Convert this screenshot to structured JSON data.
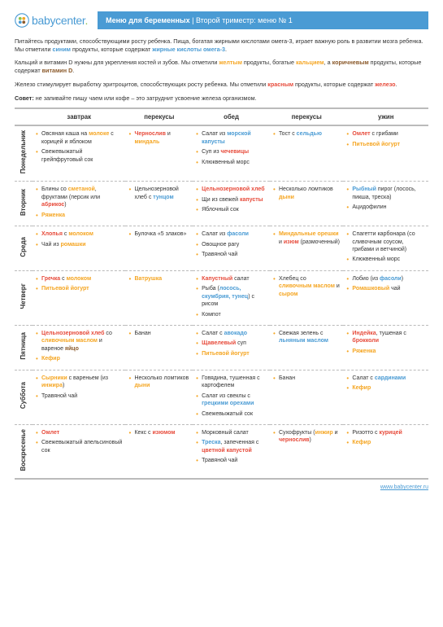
{
  "logo": {
    "name": "babycenter"
  },
  "title": {
    "main": "Меню для беременных",
    "sub": "Второй триместр: меню № 1"
  },
  "intro": [
    "Питайтесь продуктами, способствующими росту ребенка. Пища, богатая жирными кислотами омега-3, играет важную роль в развитии мозга ребенка. Мы отметили <span class='blue'>синим</span> продукты, которые содержат <span class='blue'>жирные кислоты омега-3</span>.",
    "Кальций и витамин D нужны для укрепления костей и зубов. Мы отметили <span class='yellow'>желтым</span> продукты, богатые <span class='yellow'>кальцием</span>, а <span class='brown'>коричневым</span> продукты, которые содержат <span class='brown'>витамин D</span>.",
    "Железо стимулирует выработку эритроцитов, способствующих росту ребенка. Мы отметили <span class='red'>красным</span> продукты, которые содержат <span class='red'>железо</span>."
  ],
  "tip": "<b>Совет:</b> не запивайте пищу чаем или кофе – это затруднит усвоение железа организмом.",
  "columns": [
    "завтрак",
    "перекусы",
    "обед",
    "перекусы",
    "ужин"
  ],
  "days": [
    {
      "name": "Понедельник",
      "cells": [
        [
          "Овсяная каша на <span class='yellow'>молоке</span> с корицей и яблоком",
          "Свежевыжатый грейпфрутовый сок"
        ],
        [
          "<span class='red'>Чернослив</span> и <span class='yellow'>миндаль</span>"
        ],
        [
          "Салат из <span class='blue'>морской капусты</span>",
          "Суп из <span class='red'>чечевицы</span>",
          "Клюквенный морс"
        ],
        [
          "Тост с <span class='blue'>сельдью</span>"
        ],
        [
          "<span class='red'>Омлет</span> с грибами",
          "<span class='yellow'>Питьевой йогурт</span>"
        ]
      ]
    },
    {
      "name": "Вторник",
      "cells": [
        [
          "Блины со <span class='yellow'>сметаной</span>, фруктами (персик или <span class='red'>абрикос</span>)",
          "<span class='yellow'>Ряженка</span>"
        ],
        [
          "Цельнозерновой хлеб с <span class='blue'>тунцом</span>"
        ],
        [
          "<span class='red'>Цельнозерновой хлеб</span>",
          "Щи из свежей <span class='red'>капусты</span>",
          "Яблочный сок"
        ],
        [
          "Несколько ломтиков <span class='yellow'>дыни</span>"
        ],
        [
          "<span class='blue'>Рыбный</span> пирог (лосось, пикша, треска)",
          "Ацидофилин"
        ]
      ]
    },
    {
      "name": "Среда",
      "cells": [
        [
          "<span class='red'>Хлопья</span> с <span class='yellow'>молоком</span>",
          "Чай из <span class='yellow'>ромашки</span>"
        ],
        [
          "Булочка «5 злаков»"
        ],
        [
          "Салат из <span class='blue'>фасоли</span>",
          "Овощное рагу",
          "Травяной чай"
        ],
        [
          "<span class='yellow'>Миндальные орешки</span> и <span class='red'>изюм</span> (размоченный)"
        ],
        [
          "Спагетти карбонара (со сливочным соусом, грибами и ветчиной)",
          "Клюквенный морс"
        ]
      ]
    },
    {
      "name": "Четверг",
      "cells": [
        [
          "<span class='red'>Гречка</span> с <span class='yellow'>молоком</span>",
          "<span class='yellow'>Питьевой йогурт</span>"
        ],
        [
          "<span class='yellow'>Ватрушка</span>"
        ],
        [
          "<span class='red'>Капустный</span> салат",
          "Рыба (<span class='blue'>лосось, скумбрия, тунец</span>) с рисом",
          "Компот"
        ],
        [
          "Хлебец со <span class='yellow'>сливочным маслом</span> и <span class='yellow'>сыром</span>"
        ],
        [
          "Лобио (из <span class='blue'>фасоли</span>)",
          "<span class='yellow'>Ромашковый</span> чай"
        ]
      ]
    },
    {
      "name": "Пятница",
      "cells": [
        [
          "<span class='red'>Цельнозерновой хлеб</span> со <span class='yellow'>сливочным маслом</span> и вареное <span class='brown'>яйцо</span>",
          "<span class='yellow'>Кефир</span>"
        ],
        [
          "Банан"
        ],
        [
          "Салат с <span class='blue'>авокадо</span>",
          "<span class='red'>Щавелевый</span> суп",
          "<span class='yellow'>Питьевой йогурт</span>"
        ],
        [
          "Свежая зелень с <span class='blue'>льняным маслом</span>"
        ],
        [
          "<span class='red'>Индейка</span>, тушеная с <span class='red'>брокколи</span>",
          "<span class='yellow'>Ряженка</span>"
        ]
      ]
    },
    {
      "name": "Суббота",
      "cells": [
        [
          "<span class='yellow'>Сырники</span> с вареньем (из <span class='yellow'>инжира</span>)",
          "Травяной чай"
        ],
        [
          "Несколько ломтиков <span class='yellow'>дыни</span>"
        ],
        [
          "Говядина, тушенная с картофелем",
          "Салат из свеклы с <span class='blue'>грецкими орехами</span>",
          "Свежевыжатый сок"
        ],
        [
          "Банан"
        ],
        [
          "Салат с <span class='blue'>сардинами</span>",
          "<span class='yellow'>Кефир</span>"
        ]
      ]
    },
    {
      "name": "Воскресенье",
      "cells": [
        [
          "<span class='red'>Омлет</span>",
          "Свежевыжатый апельсиновый сок"
        ],
        [
          "Кекс с <span class='red'>изюмом</span>"
        ],
        [
          "Морковный салат",
          "<span class='blue'>Треска</span>, запеченная с <span class='red'>цветной капустой</span>",
          "Травяной чай"
        ],
        [
          "Сухофрукты (<span class='yellow'>инжир</span> и <span class='red'>чернослив</span>)"
        ],
        [
          "Ризотто с <span class='red'>курицей</span>",
          "<span class='yellow'>Кефир</span>"
        ]
      ]
    }
  ],
  "footer": {
    "url": "www.babycenter.ru"
  }
}
